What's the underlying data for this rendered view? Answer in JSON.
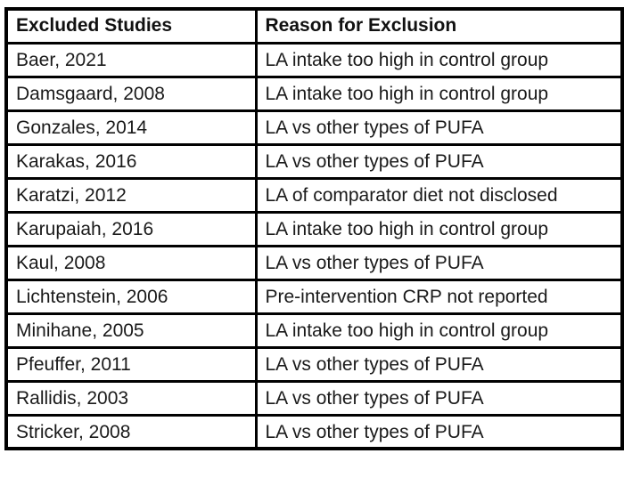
{
  "table": {
    "name": "Excluded studies table",
    "colors": {
      "border": "#000000",
      "text": "#1a1a1a",
      "background": "#ffffff"
    },
    "columns": [
      {
        "label": "Excluded Studies"
      },
      {
        "label": "Reason for Exclusion"
      }
    ],
    "rows": [
      {
        "study": "Baer, 2021",
        "reason": "LA intake too high in control group"
      },
      {
        "study": "Damsgaard, 2008",
        "reason": "LA intake too high in control group"
      },
      {
        "study": "Gonzales, 2014",
        "reason": "LA vs other types of PUFA"
      },
      {
        "study": "Karakas, 2016",
        "reason": "LA vs other types of PUFA"
      },
      {
        "study": "Karatzi, 2012",
        "reason": "LA of comparator diet not disclosed"
      },
      {
        "study": "Karupaiah, 2016",
        "reason": "LA intake too high in control group"
      },
      {
        "study": "Kaul, 2008",
        "reason": "LA vs other types of PUFA"
      },
      {
        "study": "Lichtenstein, 2006",
        "reason": "Pre-intervention CRP not reported"
      },
      {
        "study": "Minihane, 2005",
        "reason": "LA intake too high in control group"
      },
      {
        "study": "Pfeuffer, 2011",
        "reason": "LA vs other types of PUFA"
      },
      {
        "study": "Rallidis, 2003",
        "reason": "LA vs other types of PUFA"
      },
      {
        "study": "Stricker, 2008",
        "reason": "LA vs other types of PUFA"
      }
    ]
  },
  "chart_data": {
    "type": "table",
    "title": "Excluded Studies",
    "columns": [
      "Excluded Studies",
      "Reason for Exclusion"
    ],
    "rows": [
      [
        "Baer, 2021",
        "LA intake too high in control group"
      ],
      [
        "Damsgaard, 2008",
        "LA intake too high in control group"
      ],
      [
        "Gonzales, 2014",
        "LA vs other types of PUFA"
      ],
      [
        "Karakas, 2016",
        "LA vs other types of PUFA"
      ],
      [
        "Karatzi, 2012",
        "LA of comparator diet not disclosed"
      ],
      [
        "Karupaiah, 2016",
        "LA intake too high in control group"
      ],
      [
        "Kaul, 2008",
        "LA vs other types of PUFA"
      ],
      [
        "Lichtenstein, 2006",
        "Pre-intervention CRP not reported"
      ],
      [
        "Minihane, 2005",
        "LA intake too high in control group"
      ],
      [
        "Pfeuffer, 2011",
        "LA vs other types of PUFA"
      ],
      [
        "Rallidis, 2003",
        "LA vs other types of PUFA"
      ],
      [
        "Stricker, 2008",
        "LA vs other types of PUFA"
      ]
    ]
  }
}
